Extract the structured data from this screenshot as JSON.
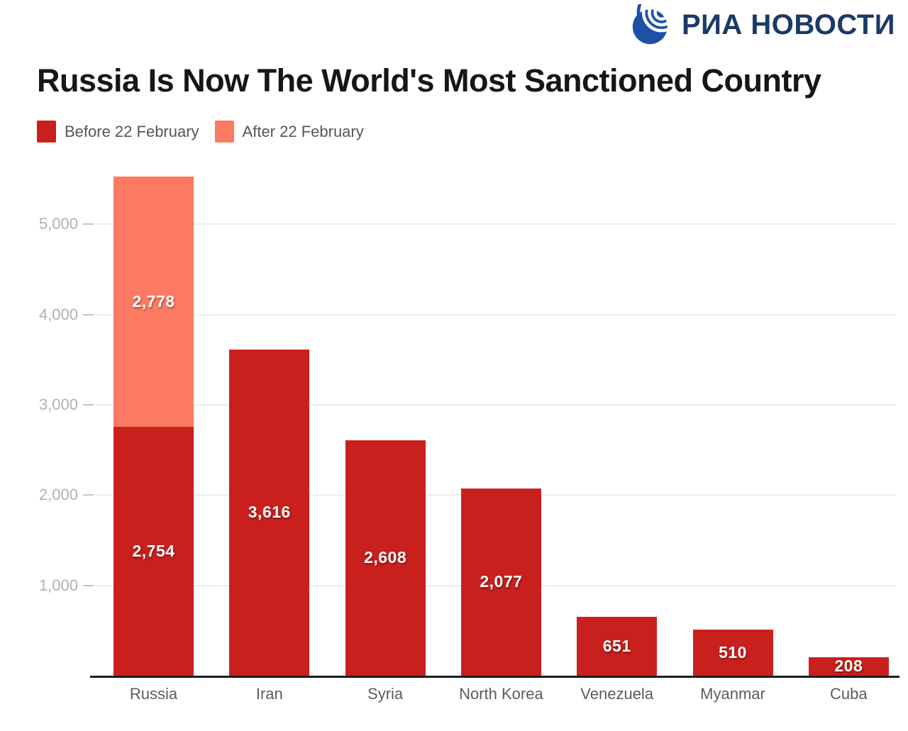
{
  "logo": {
    "text": "РИА НОВОСТИ",
    "globe_color": "#1d51a8",
    "text_color": "#1b3a66"
  },
  "chart_data": {
    "type": "bar",
    "stacked": true,
    "title": "Russia Is Now The World's Most Sanctioned Country",
    "categories": [
      "Russia",
      "Iran",
      "Syria",
      "North Korea",
      "Venezuela",
      "Myanmar",
      "Cuba"
    ],
    "series": [
      {
        "name": "Before 22 February",
        "color": "#c9201d",
        "values": [
          2754,
          3616,
          2608,
          2077,
          651,
          510,
          208
        ],
        "labels": [
          "2,754",
          "3,616",
          "2,608",
          "2,077",
          "651",
          "510",
          "208"
        ]
      },
      {
        "name": "After 22 February",
        "color": "#fd7a62",
        "values": [
          2778,
          0,
          0,
          0,
          0,
          0,
          0
        ],
        "labels": [
          "2,778",
          "",
          "",
          "",
          "",
          "",
          ""
        ]
      }
    ],
    "y_ticks": [
      {
        "value": 1000,
        "label": "1,000"
      },
      {
        "value": 2000,
        "label": "2,000"
      },
      {
        "value": 3000,
        "label": "3,000"
      },
      {
        "value": 4000,
        "label": "4,000"
      },
      {
        "value": 5000,
        "label": "5,000"
      }
    ],
    "ylim": [
      0,
      5600
    ],
    "xlabel": "",
    "ylabel": "",
    "grid": true,
    "legend_position": "top-left"
  }
}
